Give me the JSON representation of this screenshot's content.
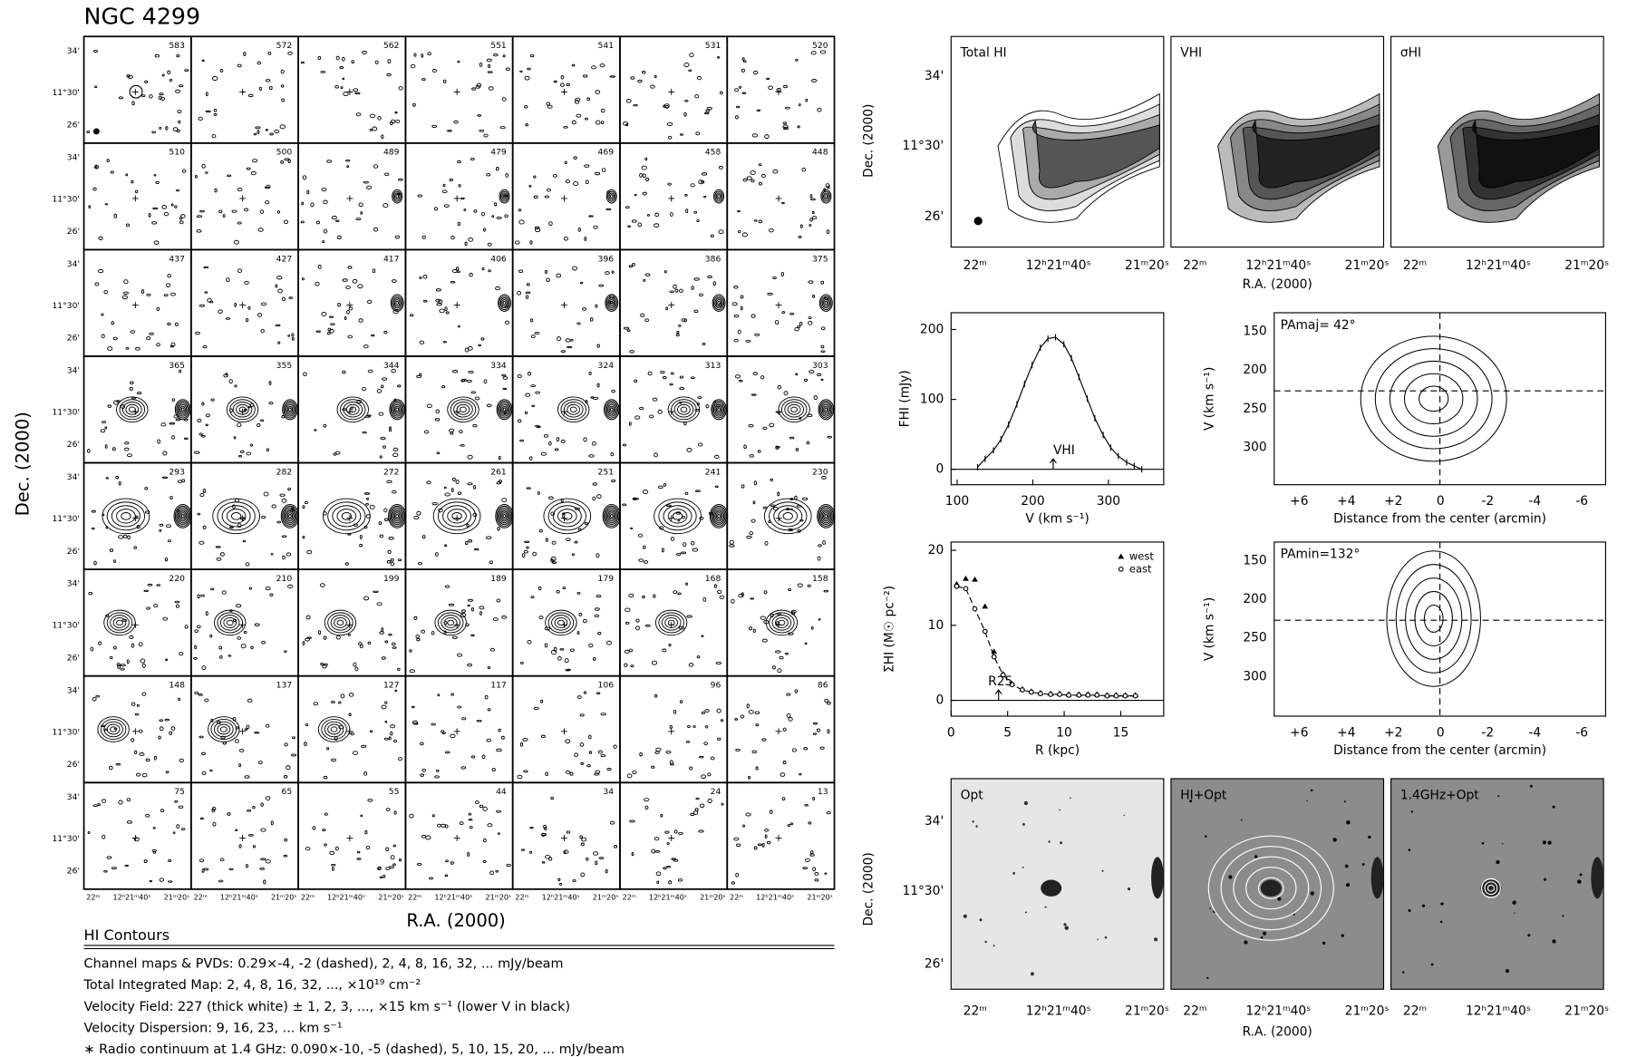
{
  "title": "NGC 4299",
  "channel_maps": {
    "velocities": [
      583,
      572,
      562,
      551,
      541,
      531,
      520,
      510,
      500,
      489,
      479,
      469,
      458,
      448,
      437,
      427,
      417,
      406,
      396,
      386,
      375,
      365,
      355,
      344,
      334,
      324,
      313,
      303,
      293,
      282,
      272,
      261,
      251,
      241,
      230,
      220,
      210,
      199,
      189,
      179,
      168,
      158,
      148,
      137,
      127,
      117,
      106,
      96,
      86,
      75,
      65,
      55,
      44,
      34,
      24,
      13
    ],
    "y_tick_labels": [
      "34'",
      "11°30'",
      "26'"
    ],
    "x_tick_labels": [
      "22ᵐ",
      "12ʰ21ᵐ40ˢ",
      "21ᵐ20ˢ"
    ],
    "x_label": "R.A. (2000)",
    "y_label": "Dec. (2000)"
  },
  "contour_notes": {
    "heading": "HI Contours",
    "lines": [
      "Channel maps & PVDs: 0.29×-4, -2 (dashed), 2, 4, 8, 16, 32, ... mJy/beam",
      "Total Integrated Map:  2, 4, 8, 16, 32, ..., ×10¹⁹ cm⁻²",
      "Velocity Field: 227 (thick white) ± 1, 2, 3, ..., ×15   km s⁻¹ (lower V in black)",
      "Velocity Dispersion:  9, 16, 23, ... km s⁻¹",
      "∗ Radio continuum at 1.4 GHz: 0.090×-10, -5 (dashed), 5, 10, 15, 20, ... mJy/beam"
    ]
  },
  "moment_maps": {
    "panels": [
      "Total HI",
      "VHI",
      "σHI"
    ],
    "y_tick_labels": [
      "34'",
      "11°30'",
      "26'"
    ],
    "x_tick_labels": [
      "22ᵐ",
      "12ʰ21ᵐ40ˢ",
      "21ᵐ20ˢ"
    ],
    "x_label": "R.A. (2000)",
    "y_label": "Dec. (2000)"
  },
  "optical_maps": {
    "panels": [
      "Opt",
      "HI+Opt",
      "1.4GHz+Opt"
    ],
    "y_tick_labels": [
      "34'",
      "11°30'",
      "26'"
    ],
    "x_tick_labels": [
      "22ᵐ",
      "12ʰ21ᵐ40ˢ",
      "21ᵐ20ˢ"
    ],
    "x_label": "R.A. (2000)",
    "y_label": "Dec. (2000)"
  },
  "pv_diagrams": [
    {
      "label": "PAmaj= 42°",
      "y_label": "V (km s⁻¹)",
      "x_label": "Distance from the center (arcmin)",
      "x_tick_labels": [
        "+6",
        "+4",
        "+2",
        "0",
        "-2",
        "-4",
        "-6"
      ],
      "y_tick_labels": [
        "150",
        "200",
        "250",
        "300"
      ]
    },
    {
      "label": "PAmin=132°",
      "y_label": "V (km s⁻¹)",
      "x_label": "Distance from the center (arcmin)",
      "x_tick_labels": [
        "+6",
        "+4",
        "+2",
        "0",
        "-2",
        "-4",
        "-6"
      ],
      "y_tick_labels": [
        "150",
        "200",
        "250",
        "300"
      ]
    }
  ],
  "chart_data": [
    {
      "type": "line",
      "x_label": "V (km s⁻¹)",
      "y_label": "FHI (mJy)",
      "color": "#000000",
      "x": [
        127,
        137,
        148,
        158,
        168,
        179,
        189,
        199,
        210,
        220,
        230,
        241,
        251,
        261,
        272,
        282,
        293,
        303,
        313,
        324,
        334,
        344
      ],
      "values": [
        3,
        15,
        27,
        43,
        64,
        93,
        122,
        149,
        174,
        187,
        189,
        179,
        159,
        132,
        101,
        73,
        49,
        31,
        19,
        10,
        5,
        0
      ],
      "xlim": [
        92,
        373
      ],
      "ylim": [
        -22,
        224
      ],
      "xticks": [
        100,
        200,
        300
      ],
      "yticks": [
        0,
        100,
        200
      ],
      "annotation": {
        "text": "VHI",
        "x": 227
      }
    },
    {
      "type": "scatter",
      "x_label": "R (kpc)",
      "y_label": "ΣHI (M☉ pc⁻²)",
      "legend": "upper right",
      "x": [
        0.5,
        1.3,
        2.1,
        3,
        3.8,
        4.6,
        5.4,
        6.3,
        7.1,
        7.9,
        8.8,
        9.6,
        10.4,
        11.3,
        12.1,
        12.9,
        13.8,
        14.6,
        15.4,
        16.3
      ],
      "series": [
        {
          "name": "west",
          "color": "#000000",
          "values": [
            15.5,
            16.2,
            16.1,
            12.5,
            6.5,
            3.5,
            2.2,
            1.5,
            1.2,
            1,
            0.9,
            0.9,
            0.8,
            0.8,
            0.8,
            0.8,
            0.7,
            0.7,
            0.7,
            0.7
          ]
        },
        {
          "name": "east",
          "color": "#000000",
          "values": [
            15.2,
            14.9,
            12.2,
            9.2,
            5.8,
            3.4,
            2.1,
            1.4,
            1.1,
            0.9,
            0.8,
            0.8,
            0.7,
            0.7,
            0.7,
            0.7,
            0.6,
            0.6,
            0.6,
            0.6
          ]
        }
      ],
      "xlim": [
        0,
        18.8
      ],
      "ylim": [
        -2.1,
        21.1
      ],
      "xticks": [
        0,
        5,
        10,
        15
      ],
      "yticks": [
        0,
        10,
        20
      ],
      "annotation": {
        "text": "R25",
        "x": 4.2
      }
    }
  ]
}
